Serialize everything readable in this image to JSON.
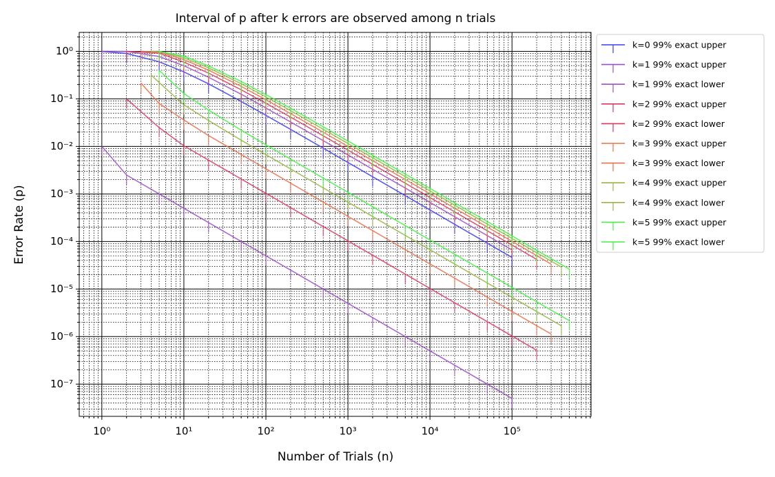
{
  "chart_data": {
    "type": "line",
    "title": "Interval of p after k errors are observed among n trials",
    "xlabel": "Number of Trials (n)",
    "ylabel": "Error Rate (p)",
    "xscale": "log",
    "yscale": "log",
    "grid": true,
    "minor_grid": true,
    "legend": "outside upper right",
    "xlim": [
      0.53,
      920000
    ],
    "ylim": [
      2.1e-08,
      2.5
    ],
    "xticks": [
      {
        "value": 1,
        "label": "10⁰"
      },
      {
        "value": 10,
        "label": "10¹"
      },
      {
        "value": 100,
        "label": "10²"
      },
      {
        "value": 1000,
        "label": "10³"
      },
      {
        "value": 10000,
        "label": "10⁴"
      },
      {
        "value": 100000,
        "label": "10⁵"
      }
    ],
    "yticks": [
      {
        "value": 1,
        "label": "10⁰"
      },
      {
        "value": 0.1,
        "label": "10⁻¹"
      },
      {
        "value": 0.01,
        "label": "10⁻²"
      },
      {
        "value": 0.001,
        "label": "10⁻³"
      },
      {
        "value": 0.0001,
        "label": "10⁻⁴"
      },
      {
        "value": 1e-05,
        "label": "10⁻⁵"
      },
      {
        "value": 1e-06,
        "label": "10⁻⁶"
      },
      {
        "value": 1e-07,
        "label": "10⁻⁷"
      }
    ],
    "series": [
      {
        "name": "k=0 99% exact upper",
        "color": "#3c3cf0",
        "x": [
          1,
          2,
          5,
          10,
          20,
          50,
          100,
          200,
          500,
          1000,
          2000,
          5000,
          10000,
          20000,
          50000,
          100000
        ],
        "values": [
          0.99,
          0.9,
          0.602,
          0.369,
          0.207,
          0.0881,
          0.0451,
          0.0228,
          0.0092,
          0.0046,
          0.0023,
          0.000921,
          0.000461,
          0.00023,
          9.21e-05,
          4.61e-05
        ]
      },
      {
        "name": "k=1 99% exact upper",
        "color": "#9b4fc6",
        "x": [
          1,
          2,
          5,
          10,
          20,
          50,
          100,
          200,
          500,
          1000,
          2000,
          5000,
          10000,
          20000,
          50000,
          100000
        ],
        "values": [
          1,
          0.995,
          0.778,
          0.498,
          0.285,
          0.125,
          0.0643,
          0.0327,
          0.0132,
          0.00662,
          0.00331,
          0.00133,
          0.000664,
          0.000332,
          0.000133,
          6.64e-05
        ]
      },
      {
        "name": "k=1 99% exact lower",
        "color": "#9b4fc6",
        "x": [
          1,
          2,
          5,
          10,
          20,
          50,
          100,
          200,
          500,
          1000,
          2000,
          5000,
          10000,
          20000,
          50000,
          100000
        ],
        "values": [
          0.01,
          0.0025,
          0.001,
          0.0005,
          0.00025,
          0.0001,
          5e-05,
          2.5e-05,
          1e-05,
          5e-06,
          2.5e-06,
          1e-06,
          5e-07,
          2.5e-07,
          1e-07,
          5e-08
        ]
      },
      {
        "name": "k=2 99% exact upper",
        "color": "#d9385e",
        "x": [
          2,
          5,
          10,
          20,
          50,
          100,
          200,
          500,
          1000,
          2000,
          5000,
          10000,
          20000,
          50000,
          100000,
          200000
        ],
        "values": [
          1,
          0.914,
          0.592,
          0.348,
          0.155,
          0.0807,
          0.0412,
          0.0167,
          0.00837,
          0.00419,
          0.00168,
          0.00084,
          0.00042,
          0.000168,
          8.41e-05,
          4.2e-05
        ]
      },
      {
        "name": "k=2 99% exact lower",
        "color": "#d9385e",
        "x": [
          2,
          5,
          10,
          20,
          50,
          100,
          200,
          500,
          1000,
          2000,
          5000,
          10000,
          20000,
          50000,
          100000,
          200000
        ],
        "values": [
          0.1,
          0.0248,
          0.0103,
          0.00515,
          0.00206,
          0.00103,
          0.000515,
          0.000206,
          0.000103,
          5.15e-05,
          2.06e-05,
          1.03e-05,
          5.15e-06,
          2.06e-06,
          1.03e-06,
          5.15e-07
        ]
      },
      {
        "name": "k=3 99% exact upper",
        "color": "#e8704a",
        "x": [
          3,
          5,
          10,
          20,
          50,
          100,
          200,
          500,
          1000,
          2000,
          5000,
          10000,
          20000,
          50000,
          100000,
          200000,
          300000
        ],
        "values": [
          1,
          0.97,
          0.669,
          0.402,
          0.183,
          0.0957,
          0.049,
          0.0199,
          0.01,
          0.00501,
          0.00201,
          0.00101,
          0.000502,
          0.000201,
          0.000101,
          5.02e-05,
          3.35e-05
        ]
      },
      {
        "name": "k=3 99% exact lower",
        "color": "#e8704a",
        "x": [
          3,
          5,
          10,
          20,
          50,
          100,
          200,
          500,
          1000,
          2000,
          5000,
          10000,
          20000,
          50000,
          100000,
          200000,
          300000
        ],
        "values": [
          0.215,
          0.08,
          0.036,
          0.0169,
          0.00676,
          0.00338,
          0.00169,
          0.000676,
          0.000338,
          0.000169,
          6.76e-05,
          3.38e-05,
          1.69e-05,
          6.76e-06,
          3.38e-06,
          1.69e-06,
          1.13e-06
        ]
      },
      {
        "name": "k=4 99% exact upper",
        "color": "#96b544",
        "x": [
          4,
          5,
          10,
          20,
          50,
          100,
          200,
          500,
          1000,
          2000,
          5000,
          10000,
          20000,
          50000,
          100000,
          200000,
          400000
        ],
        "values": [
          1,
          0.999,
          0.734,
          0.45,
          0.208,
          0.11,
          0.0564,
          0.0229,
          0.0115,
          0.00578,
          0.00232,
          0.00116,
          0.00058,
          0.000232,
          0.000116,
          5.8e-05,
          2.9e-05
        ]
      },
      {
        "name": "k=4 99% exact lower",
        "color": "#96b544",
        "x": [
          4,
          5,
          10,
          20,
          50,
          100,
          200,
          500,
          1000,
          2000,
          5000,
          10000,
          20000,
          50000,
          100000,
          200000,
          400000
        ],
        "values": [
          0.316,
          0.22,
          0.075,
          0.035,
          0.0135,
          0.00672,
          0.00336,
          0.00134,
          0.000672,
          0.000336,
          0.000134,
          6.72e-05,
          3.36e-05,
          1.34e-05,
          6.72e-06,
          3.36e-06,
          1.68e-06
        ]
      },
      {
        "name": "k=5 99% exact upper",
        "color": "#44f044",
        "x": [
          5,
          10,
          20,
          50,
          100,
          200,
          500,
          1000,
          2000,
          5000,
          10000,
          20000,
          50000,
          100000,
          200000,
          500000
        ],
        "values": [
          1,
          0.792,
          0.493,
          0.232,
          0.123,
          0.0634,
          0.0259,
          0.013,
          0.00651,
          0.00262,
          0.00131,
          0.000653,
          0.000262,
          0.000131,
          6.54e-05,
          2.62e-05
        ]
      },
      {
        "name": "k=5 99% exact lower",
        "color": "#44f044",
        "x": [
          5,
          10,
          20,
          50,
          100,
          200,
          500,
          1000,
          2000,
          5000,
          10000,
          20000,
          50000,
          100000,
          200000,
          500000
        ],
        "values": [
          0.398,
          0.13,
          0.058,
          0.0219,
          0.0108,
          0.00539,
          0.00216,
          0.00108,
          0.000539,
          0.000216,
          0.000108,
          5.39e-05,
          2.16e-05,
          1.08e-05,
          5.39e-06,
          2.16e-06
        ]
      }
    ]
  }
}
